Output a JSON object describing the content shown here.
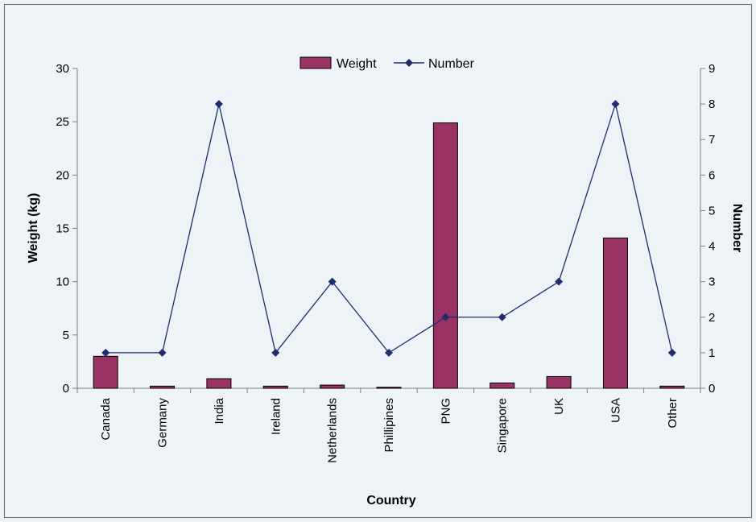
{
  "chart_data": {
    "type": "bar",
    "categories": [
      "Canada",
      "Germany",
      "India",
      "Ireland",
      "Netherlands",
      "Phillipines",
      "PNG",
      "Singapore",
      "UK",
      "USA",
      "Other"
    ],
    "series": [
      {
        "name": "Weight",
        "type": "bar",
        "axis": "left",
        "color": "#993366",
        "values": [
          3.0,
          0.2,
          0.9,
          0.2,
          0.3,
          0.1,
          24.9,
          0.5,
          1.1,
          14.1,
          0.2
        ]
      },
      {
        "name": "Number",
        "type": "line",
        "axis": "right",
        "color": "#1f2d6e",
        "values": [
          1,
          1,
          8,
          1,
          3,
          1,
          2,
          2,
          3,
          8,
          1
        ]
      }
    ],
    "xlabel": "Country",
    "ylabel": "Weight (kg)",
    "y2label": "Number",
    "ylim": [
      0,
      30
    ],
    "y2lim": [
      0,
      9
    ],
    "yticks": [
      0,
      5,
      10,
      15,
      20,
      25,
      30
    ],
    "y2ticks": [
      0,
      1,
      2,
      3,
      4,
      5,
      6,
      7,
      8,
      9
    ],
    "grid": false,
    "legend_position": "top-center"
  }
}
